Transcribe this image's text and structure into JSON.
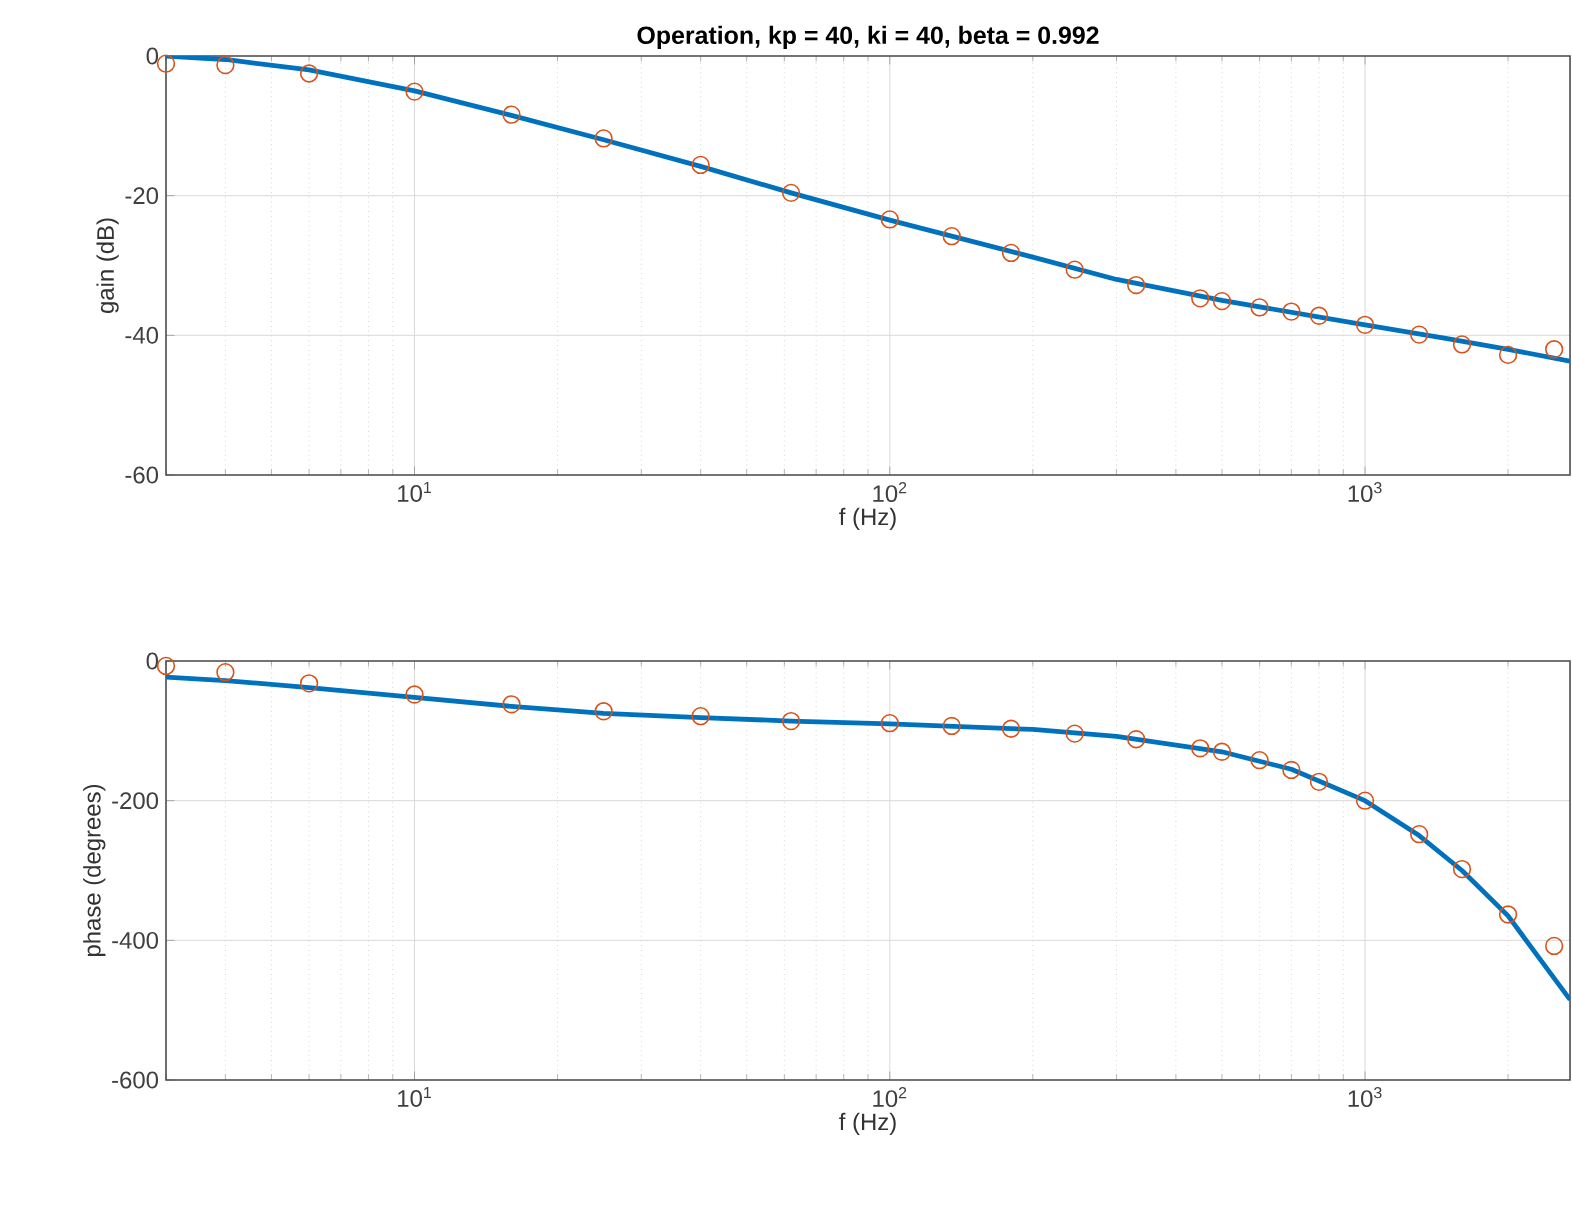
{
  "chart_data": [
    {
      "type": "line",
      "title": "Operation, kp = 40, ki = 40, beta = 0.992",
      "xlabel": "f (Hz)",
      "ylabel": "gain (dB)",
      "log": "x",
      "grid": true,
      "xlim": [
        3,
        2700
      ],
      "ylim": [
        -60,
        0
      ],
      "xticks": [
        {
          "value": 10,
          "label": "10$^{1}$"
        },
        {
          "value": 100,
          "label": "10$^{2}$"
        },
        {
          "value": 1000,
          "label": "10$^{3}$"
        }
      ],
      "yticks": [
        -60,
        -40,
        -20,
        0
      ],
      "series": [
        {
          "color": "#0072bd",
          "x": [
            3,
            4,
            6,
            10,
            16,
            25,
            40,
            62,
            100,
            200,
            300,
            500,
            1000,
            1500,
            2000,
            2700
          ],
          "values": [
            0,
            -0.5,
            -2,
            -5,
            -8.5,
            -12,
            -15.8,
            -19.6,
            -23.5,
            -28.8,
            -32,
            -35,
            -38.5,
            -40.5,
            -42,
            -43.7
          ]
        },
        {
          "type": "scatter",
          "color": "#d95319",
          "marker": "circle",
          "x": [
            3,
            4,
            6,
            10,
            16,
            25,
            40,
            62,
            100,
            135,
            180,
            245,
            330,
            450,
            500,
            600,
            700,
            800,
            1000,
            1300,
            1600,
            2000,
            2500
          ],
          "values": [
            -1.1,
            -1.3,
            -2.5,
            -5.1,
            -8.4,
            -11.8,
            -15.6,
            -19.6,
            -23.4,
            -25.8,
            -28.2,
            -30.6,
            -32.8,
            -34.7,
            -35.1,
            -36,
            -36.6,
            -37.2,
            -38.5,
            -39.9,
            -41.3,
            -42.8,
            -42
          ]
        }
      ]
    },
    {
      "type": "line",
      "xlabel": "f (Hz)",
      "ylabel": "phase (degrees)",
      "log": "x",
      "grid": true,
      "xlim": [
        3,
        2700
      ],
      "ylim": [
        -600,
        0
      ],
      "xticks": [
        {
          "value": 10,
          "label": "10$^{1}$"
        },
        {
          "value": 100,
          "label": "10$^{2}$"
        },
        {
          "value": 1000,
          "label": "10$^{3}$"
        }
      ],
      "yticks": [
        -600,
        -400,
        -200,
        0
      ],
      "series": [
        {
          "color": "#0072bd",
          "x": [
            3,
            4,
            6,
            10,
            16,
            25,
            40,
            62,
            100,
            200,
            300,
            500,
            700,
            1000,
            1300,
            1600,
            2000,
            2700
          ],
          "values": [
            -23,
            -28,
            -38,
            -52,
            -65,
            -75,
            -81,
            -86,
            -90,
            -98,
            -108,
            -130,
            -155,
            -200,
            -250,
            -300,
            -365,
            -485
          ]
        },
        {
          "type": "scatter",
          "color": "#d95319",
          "marker": "circle",
          "x": [
            3,
            4,
            6,
            10,
            16,
            25,
            40,
            62,
            100,
            135,
            180,
            245,
            330,
            450,
            500,
            600,
            700,
            800,
            1000,
            1300,
            1600,
            2000,
            2500
          ],
          "values": [
            -7,
            -16,
            -32,
            -48,
            -62,
            -72,
            -79,
            -86,
            -89,
            -93,
            -97,
            -104,
            -112,
            -125,
            -130,
            -142,
            -156,
            -173,
            -200,
            -248,
            -298,
            -363,
            -408
          ]
        }
      ]
    }
  ]
}
